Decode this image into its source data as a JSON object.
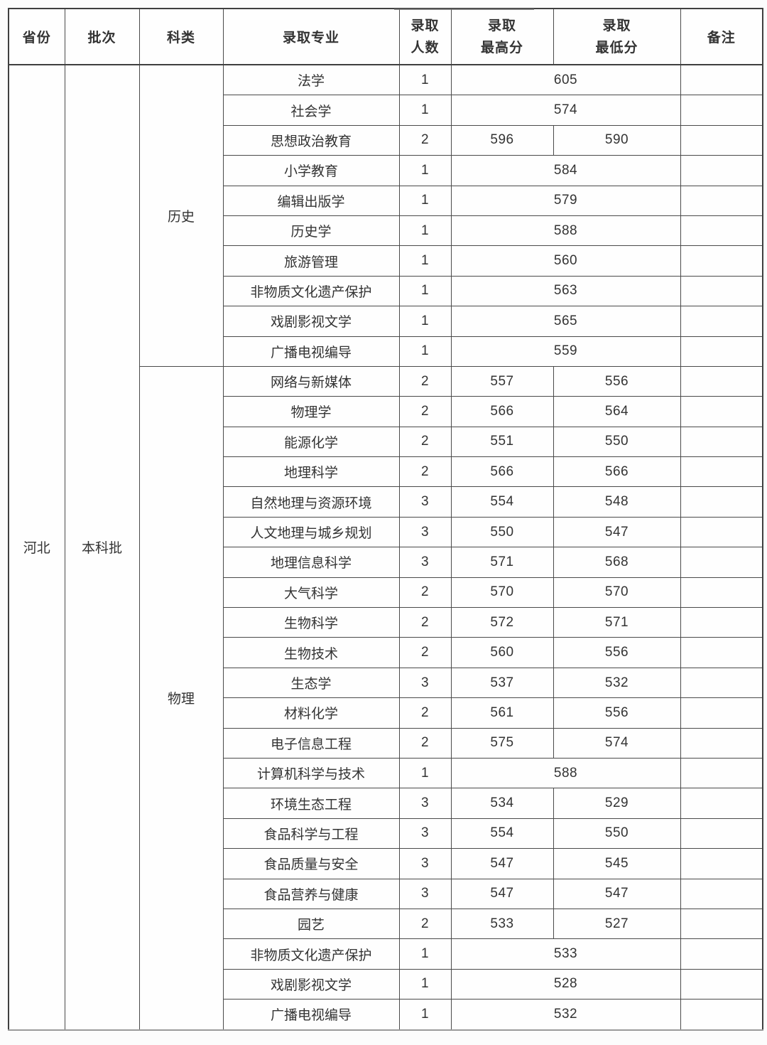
{
  "table": {
    "province": "河北",
    "batch": "本科批",
    "columns": [
      {
        "key": "province",
        "label": "省份"
      },
      {
        "key": "batch",
        "label": "批次"
      },
      {
        "key": "category",
        "label": "科类"
      },
      {
        "key": "major",
        "label": "录取专业"
      },
      {
        "key": "count",
        "label": "录取人数",
        "label_lines": [
          "录取",
          "人数"
        ]
      },
      {
        "key": "max",
        "label": "录取最高分",
        "label_lines": [
          "录取",
          "最高分"
        ]
      },
      {
        "key": "min",
        "label": "录取最低分",
        "label_lines": [
          "录取",
          "最低分"
        ]
      },
      {
        "key": "remark",
        "label": "备注"
      }
    ],
    "groups": [
      {
        "category": "历史",
        "rows": [
          {
            "major": "法学",
            "count": "1",
            "score": "605"
          },
          {
            "major": "社会学",
            "count": "1",
            "score": "574"
          },
          {
            "major": "思想政治教育",
            "count": "2",
            "max": "596",
            "min": "590"
          },
          {
            "major": "小学教育",
            "count": "1",
            "score": "584"
          },
          {
            "major": "编辑出版学",
            "count": "1",
            "score": "579"
          },
          {
            "major": "历史学",
            "count": "1",
            "score": "588"
          },
          {
            "major": "旅游管理",
            "count": "1",
            "score": "560"
          },
          {
            "major": "非物质文化遗产保护",
            "count": "1",
            "score": "563"
          },
          {
            "major": "戏剧影视文学",
            "count": "1",
            "score": "565"
          },
          {
            "major": "广播电视编导",
            "count": "1",
            "score": "559"
          }
        ]
      },
      {
        "category": "物理",
        "rows": [
          {
            "major": "网络与新媒体",
            "count": "2",
            "max": "557",
            "min": "556"
          },
          {
            "major": "物理学",
            "count": "2",
            "max": "566",
            "min": "564"
          },
          {
            "major": "能源化学",
            "count": "2",
            "max": "551",
            "min": "550"
          },
          {
            "major": "地理科学",
            "count": "2",
            "max": "566",
            "min": "566"
          },
          {
            "major": "自然地理与资源环境",
            "count": "3",
            "max": "554",
            "min": "548"
          },
          {
            "major": "人文地理与城乡规划",
            "count": "3",
            "max": "550",
            "min": "547"
          },
          {
            "major": "地理信息科学",
            "count": "3",
            "max": "571",
            "min": "568"
          },
          {
            "major": "大气科学",
            "count": "2",
            "max": "570",
            "min": "570"
          },
          {
            "major": "生物科学",
            "count": "2",
            "max": "572",
            "min": "571"
          },
          {
            "major": "生物技术",
            "count": "2",
            "max": "560",
            "min": "556"
          },
          {
            "major": "生态学",
            "count": "3",
            "max": "537",
            "min": "532"
          },
          {
            "major": "材料化学",
            "count": "2",
            "max": "561",
            "min": "556"
          },
          {
            "major": "电子信息工程",
            "count": "2",
            "max": "575",
            "min": "574"
          },
          {
            "major": "计算机科学与技术",
            "count": "1",
            "score": "588"
          },
          {
            "major": "环境生态工程",
            "count": "3",
            "max": "534",
            "min": "529"
          },
          {
            "major": "食品科学与工程",
            "count": "3",
            "max": "554",
            "min": "550"
          },
          {
            "major": "食品质量与安全",
            "count": "3",
            "max": "547",
            "min": "545"
          },
          {
            "major": "食品营养与健康",
            "count": "3",
            "max": "547",
            "min": "547"
          },
          {
            "major": "园艺",
            "count": "2",
            "max": "533",
            "min": "527"
          },
          {
            "major": "非物质文化遗产保护",
            "count": "1",
            "score": "533"
          },
          {
            "major": "戏剧影视文学",
            "count": "1",
            "score": "528"
          },
          {
            "major": "广播电视编导",
            "count": "1",
            "score": "532"
          }
        ]
      }
    ]
  }
}
